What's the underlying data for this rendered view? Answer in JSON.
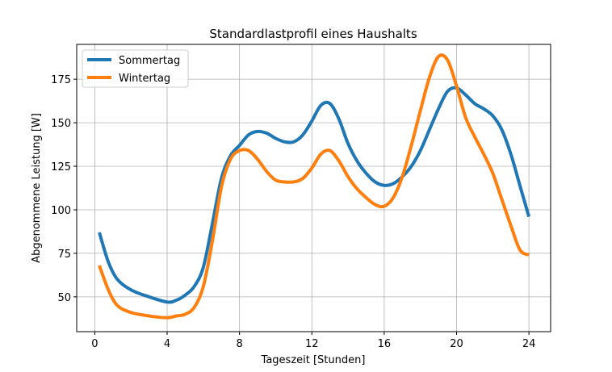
{
  "chart_data": {
    "type": "line",
    "title": "Standardlastprofil eines Haushalts",
    "xlabel": "Tageszeit [Stunden]",
    "ylabel": "Abgenommene Leistung [W]",
    "xlim": [
      -1,
      25.2
    ],
    "ylim": [
      30,
      195
    ],
    "xticks": [
      0,
      4,
      8,
      12,
      16,
      20,
      24
    ],
    "yticks": [
      50,
      75,
      100,
      125,
      150,
      175
    ],
    "grid": true,
    "legend": "top-left",
    "series": [
      {
        "name": "Sommertag",
        "color": "#1f77b4",
        "x": [
          0.25,
          0.75,
          1.25,
          2,
          3,
          4,
          4.5,
          5,
          5.5,
          6,
          6.5,
          7,
          7.5,
          8,
          8.5,
          9,
          9.5,
          10,
          10.5,
          11,
          11.5,
          12,
          12.5,
          13,
          13.5,
          14,
          14.5,
          15,
          15.5,
          16,
          16.5,
          17,
          17.5,
          18,
          18.5,
          19,
          19.5,
          20,
          20.5,
          21,
          21.5,
          22,
          22.5,
          23,
          23.5,
          24
        ],
        "y": [
          87,
          70,
          60,
          54,
          50,
          47,
          48,
          51,
          56,
          67,
          92,
          118,
          131,
          137,
          143,
          145,
          144,
          141,
          139,
          139,
          143,
          151,
          160,
          161,
          152,
          138,
          128,
          121,
          116,
          114,
          115,
          119,
          125,
          134,
          146,
          158,
          168,
          170,
          166,
          161,
          158,
          154,
          146,
          132,
          114,
          96
        ]
      },
      {
        "name": "Wintertag",
        "color": "#ff7f0e",
        "x": [
          0.25,
          0.75,
          1.25,
          2,
          3,
          4,
          4.5,
          5,
          5.5,
          6,
          6.5,
          7,
          7.5,
          8,
          8.5,
          9,
          9.5,
          10,
          10.5,
          11,
          11.5,
          12,
          12.5,
          13,
          13.5,
          14,
          14.5,
          15,
          15.5,
          16,
          16.5,
          17,
          17.5,
          18,
          18.5,
          19,
          19.5,
          20,
          20.5,
          21,
          21.5,
          22,
          22.5,
          23,
          23.5,
          24
        ],
        "y": [
          68,
          54,
          45,
          41,
          39,
          38,
          39,
          40,
          44,
          56,
          82,
          113,
          129,
          134,
          134,
          129,
          122,
          117,
          116,
          116,
          118,
          124,
          132,
          134,
          128,
          119,
          112,
          107,
          103,
          102,
          107,
          119,
          137,
          157,
          176,
          188,
          186,
          171,
          153,
          142,
          132,
          121,
          106,
          91,
          77,
          74
        ]
      }
    ]
  }
}
